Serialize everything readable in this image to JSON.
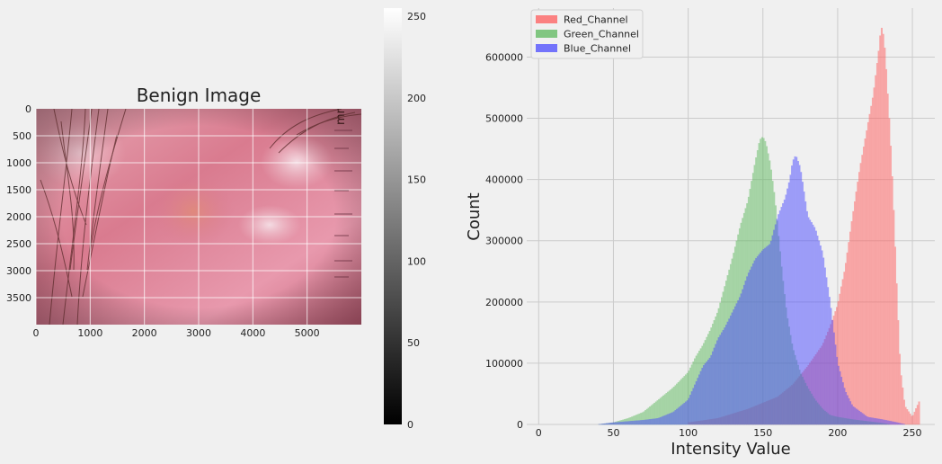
{
  "colors": {
    "background": "#f0f0f0",
    "grid": "#cbcbcb",
    "red": "#ff5c5c",
    "green": "#5cb85c",
    "blue": "#4a4aff",
    "text": "#222222"
  },
  "chart_data": [
    {
      "type": "image",
      "title": "Benign Image",
      "xlim": [
        0,
        6000
      ],
      "ylim": [
        4000,
        0
      ],
      "x_ticks": [
        "0",
        "1000",
        "2000",
        "3000",
        "4000",
        "5000"
      ],
      "y_ticks": [
        "0",
        "500",
        "1000",
        "1500",
        "2000",
        "2500",
        "3000",
        "3500"
      ],
      "grid": true,
      "watermark_text": "mm",
      "colorbar": {
        "range": [
          0,
          255
        ],
        "ticks": [
          "0",
          "50",
          "100",
          "150",
          "200",
          "250"
        ],
        "colormap": "gray"
      }
    },
    {
      "type": "histogram",
      "xlabel": "Intensity Value",
      "ylabel": "Count",
      "xlim": [
        -8,
        265
      ],
      "ylim": [
        0,
        680000
      ],
      "x_ticks": [
        "0",
        "50",
        "100",
        "150",
        "200",
        "250"
      ],
      "y_ticks": [
        "0",
        "100000",
        "200000",
        "300000",
        "400000",
        "500000",
        "600000"
      ],
      "grid": true,
      "legend_position": "top-left",
      "bin_width": 1,
      "series": [
        {
          "name": "Red_Channel",
          "color": "#ff5c5c",
          "x": [
            100,
            120,
            140,
            150,
            160,
            170,
            180,
            190,
            195,
            200,
            205,
            210,
            215,
            218,
            221,
            224,
            226,
            228,
            229,
            230,
            231,
            232,
            233,
            234,
            235,
            236,
            237,
            238,
            239,
            240,
            241,
            242,
            245,
            250,
            255
          ],
          "values": [
            3000,
            10000,
            25000,
            35000,
            45000,
            65000,
            95000,
            130000,
            160000,
            195000,
            255000,
            340000,
            420000,
            460000,
            500000,
            540000,
            580000,
            620000,
            650000,
            645000,
            630000,
            600000,
            560000,
            520000,
            480000,
            430000,
            380000,
            320000,
            260000,
            200000,
            140000,
            90000,
            30000,
            12000,
            40000
          ]
        },
        {
          "name": "Green_Channel",
          "color": "#5cb85c",
          "x": [
            40,
            50,
            60,
            70,
            80,
            90,
            100,
            105,
            110,
            115,
            120,
            125,
            130,
            135,
            140,
            145,
            148,
            150,
            152,
            155,
            158,
            160,
            163,
            166,
            170,
            175,
            180,
            185,
            190,
            195,
            200,
            210,
            220,
            230,
            235
          ],
          "values": [
            0,
            3000,
            10000,
            20000,
            40000,
            60000,
            85000,
            110000,
            130000,
            155000,
            185000,
            230000,
            275000,
            325000,
            365000,
            430000,
            465000,
            470000,
            460000,
            425000,
            370000,
            320000,
            245000,
            180000,
            125000,
            85000,
            60000,
            40000,
            25000,
            15000,
            12000,
            8000,
            5000,
            2000,
            0
          ]
        },
        {
          "name": "Blue_Channel",
          "color": "#4a4aff",
          "x": [
            40,
            50,
            60,
            70,
            80,
            90,
            100,
            110,
            115,
            120,
            125,
            130,
            135,
            140,
            145,
            150,
            155,
            160,
            165,
            168,
            170,
            172,
            175,
            180,
            185,
            190,
            195,
            200,
            205,
            210,
            220,
            230,
            240,
            245
          ],
          "values": [
            0,
            3000,
            5000,
            7000,
            10000,
            20000,
            40000,
            95000,
            110000,
            140000,
            160000,
            185000,
            210000,
            245000,
            270000,
            285000,
            295000,
            340000,
            370000,
            400000,
            430000,
            440000,
            420000,
            340000,
            320000,
            280000,
            200000,
            100000,
            55000,
            30000,
            12000,
            8000,
            3000,
            0
          ]
        }
      ]
    }
  ]
}
